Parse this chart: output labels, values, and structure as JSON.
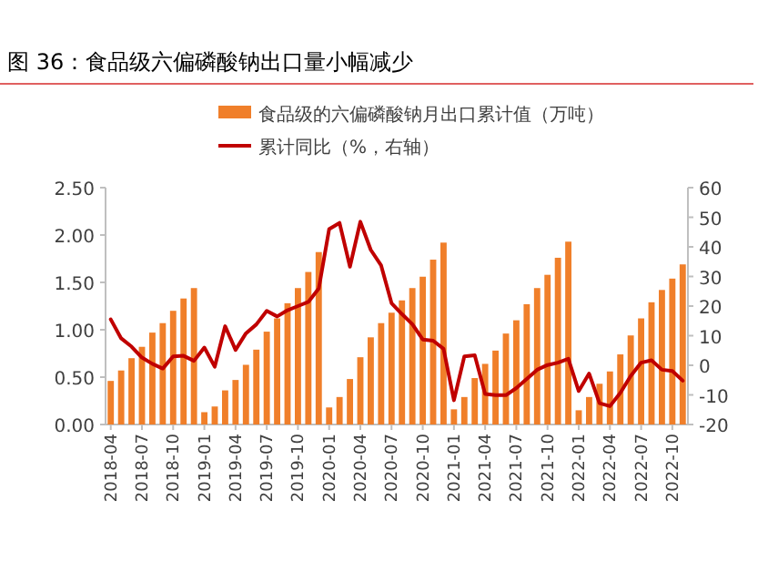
{
  "chart_data": {
    "type": "bar",
    "title": "图 36：食品级六偏磷酸钠出口量小幅减少",
    "categories": [
      "2018-04",
      null,
      null,
      "2018-07",
      null,
      null,
      "2018-10",
      null,
      null,
      "2019-01",
      null,
      null,
      "2019-04",
      null,
      null,
      "2019-07",
      null,
      null,
      "2019-10",
      null,
      null,
      "2020-01",
      null,
      null,
      "2020-04",
      null,
      null,
      "2020-07",
      null,
      null,
      "2020-10",
      null,
      null,
      "2021-01",
      null,
      null,
      "2021-04",
      null,
      null,
      "2021-07",
      null,
      null,
      "2021-10",
      null,
      null,
      "2022-01",
      null,
      null,
      "2022-04",
      null,
      null,
      "2022-07",
      null,
      null,
      "2022-10",
      null
    ],
    "series": [
      {
        "name": "食品级的六偏磷酸钠月出口累计值（万吨）",
        "type": "bar",
        "color": "#f07f2a",
        "values": [
          0.46,
          0.57,
          0.7,
          0.82,
          0.97,
          1.07,
          1.2,
          1.33,
          1.44,
          0.13,
          0.19,
          0.36,
          0.47,
          0.63,
          0.79,
          0.98,
          1.12,
          1.28,
          1.44,
          1.61,
          1.82,
          0.18,
          0.29,
          0.48,
          0.71,
          0.92,
          1.07,
          1.18,
          1.31,
          1.44,
          1.56,
          1.74,
          1.92,
          0.16,
          0.29,
          0.49,
          0.64,
          0.78,
          0.96,
          1.1,
          1.27,
          1.44,
          1.58,
          1.76,
          1.93,
          0.15,
          0.29,
          0.43,
          0.56,
          0.74,
          0.94,
          1.12,
          1.29,
          1.42,
          1.54,
          1.69
        ]
      },
      {
        "name": "累计同比（%，右轴）",
        "type": "line",
        "axis": "y2",
        "color": "#c00000",
        "values": [
          15.5,
          9.1,
          6.3,
          2.6,
          0.5,
          -1.1,
          3.0,
          3.2,
          1.5,
          6.0,
          -0.5,
          13.2,
          5.2,
          10.8,
          13.8,
          18.4,
          16.5,
          18.6,
          20.0,
          21.4,
          25.9,
          46.0,
          48.1,
          33.3,
          48.5,
          39.0,
          33.7,
          21.0,
          17.3,
          13.9,
          8.7,
          8.3,
          5.6,
          -11.8,
          3.0,
          3.4,
          -9.7,
          -10.1,
          -10.1,
          -7.7,
          -4.6,
          -1.5,
          0.1,
          0.9,
          2.2,
          -8.7,
          -2.8,
          -12.8,
          -13.8,
          -9.3,
          -3.6,
          0.9,
          1.7,
          -1.5,
          -1.9,
          -5.2
        ]
      }
    ],
    "ylim": [
      0,
      2.5
    ],
    "yticks": [
      {
        "value": 0,
        "label": "0.00"
      },
      {
        "value": 0.5,
        "label": "0.50"
      },
      {
        "value": 1,
        "label": "1.00"
      },
      {
        "value": 1.5,
        "label": "1.50"
      },
      {
        "value": 2,
        "label": "2.00"
      },
      {
        "value": 2.5,
        "label": "2.50"
      }
    ],
    "y2lim": [
      -20,
      60
    ],
    "y2ticks": [
      -20,
      -10,
      0,
      10,
      20,
      30,
      40,
      50,
      60
    ],
    "legend": "top"
  }
}
